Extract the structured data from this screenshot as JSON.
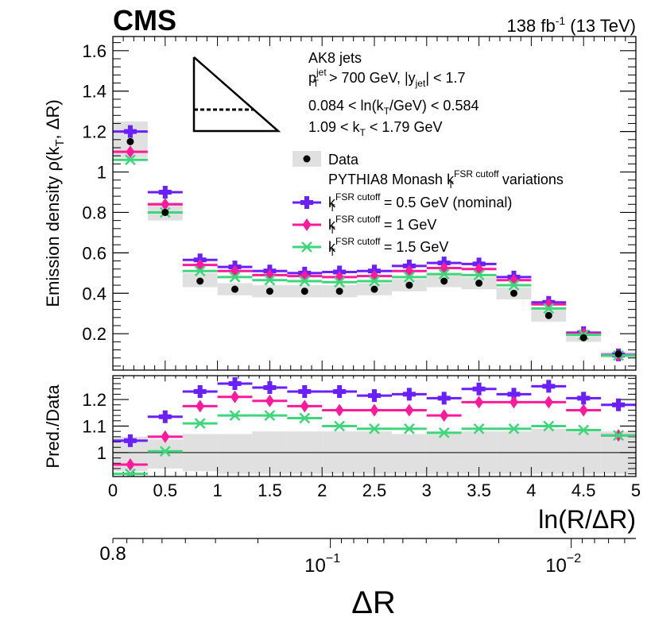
{
  "header": {
    "experiment": "CMS",
    "lumi": "138 fb",
    "lumi_exp": "-1",
    "energy": " (13 TeV)"
  },
  "annotations": {
    "jets": "AK8 jets",
    "pt_prefix": "p",
    "pt_sub": "T",
    "pt_sup": "jet",
    "pt_rest": " > 700 GeV, |y",
    "y_sub": "jet",
    "y_rest": "| < 1.7",
    "ln_cut": "0.084 < ln(k",
    "ln_sub": "T",
    "ln_rest": "/GeV) < 0.584",
    "kt_cut": "1.09 < k",
    "kt_sub": "T",
    "kt_rest": " < 1.79 GeV"
  },
  "legend": {
    "data": "Data",
    "header_pre": "PYTHIA8 Monash k",
    "header_sub": "T",
    "header_sup": "FSR cutoff",
    "header_post": " variations",
    "k": "k",
    "k_sub": "T",
    "k_sup": "FSR cutoff",
    "entry_nominal": " = 0.5 GeV (nominal)",
    "entry_1": " = 1 GeV",
    "entry_15": " = 1.5 GeV"
  },
  "colors": {
    "nominal": "#6a1fff",
    "kt1": "#ff1a9c",
    "kt15": "#3ed67a",
    "band": "#e0e0e0"
  },
  "chart_data": [
    {
      "type": "line",
      "panel": "main",
      "ylabel_pre": "Emission density ρ(k",
      "ylabel_sub": "T",
      "ylabel_post": ", ΔR)",
      "xlim": [
        0,
        5
      ],
      "ylim": [
        0.02,
        1.67
      ],
      "yticks": [
        0.2,
        0.4,
        0.6,
        0.8,
        1,
        1.2,
        1.4,
        1.6
      ],
      "ytick_labels": [
        "0.2",
        "0.4",
        "0.6",
        "0.8",
        "1",
        "1.2",
        "1.4",
        "1.6"
      ],
      "bin_edges": [
        0,
        0.333,
        0.667,
        1.0,
        1.333,
        1.667,
        2.0,
        2.333,
        2.667,
        3.0,
        3.333,
        3.667,
        4.0,
        4.333,
        4.667,
        5.0
      ],
      "data": [
        1.15,
        0.8,
        0.46,
        0.42,
        0.41,
        0.41,
        0.41,
        0.42,
        0.44,
        0.46,
        0.45,
        0.4,
        0.29,
        0.18,
        0.1
      ],
      "data_band": [
        [
          1.07,
          1.25
        ],
        [
          0.76,
          0.85
        ],
        [
          0.43,
          0.5
        ],
        [
          0.39,
          0.45
        ],
        [
          0.38,
          0.44
        ],
        [
          0.38,
          0.44
        ],
        [
          0.38,
          0.44
        ],
        [
          0.39,
          0.45
        ],
        [
          0.41,
          0.47
        ],
        [
          0.43,
          0.49
        ],
        [
          0.42,
          0.48
        ],
        [
          0.37,
          0.43
        ],
        [
          0.26,
          0.32
        ],
        [
          0.16,
          0.2
        ],
        [
          0.08,
          0.11
        ]
      ],
      "series": [
        {
          "name": "kT FSR cutoff = 0.5 GeV (nominal)",
          "values": [
            1.2,
            0.9,
            0.565,
            0.53,
            0.51,
            0.5,
            0.505,
            0.51,
            0.535,
            0.55,
            0.545,
            0.48,
            0.355,
            0.205,
            0.095
          ]
        },
        {
          "name": "kT FSR cutoff = 1 GeV",
          "values": [
            1.1,
            0.84,
            0.54,
            0.51,
            0.49,
            0.485,
            0.48,
            0.485,
            0.51,
            0.525,
            0.52,
            0.465,
            0.345,
            0.2,
            0.093
          ]
        },
        {
          "name": "kT FSR cutoff = 1.5 GeV",
          "values": [
            1.06,
            0.8,
            0.51,
            0.48,
            0.465,
            0.46,
            0.455,
            0.46,
            0.48,
            0.495,
            0.49,
            0.44,
            0.325,
            0.195,
            0.092
          ]
        }
      ]
    },
    {
      "type": "line",
      "panel": "ratio",
      "ylabel": "Pred./Data",
      "xlabel_pre": "ln(R/",
      "xlabel_delta": "Δ",
      "xlabel_post": "R)",
      "xlim": [
        0,
        5
      ],
      "ylim": [
        0.91,
        1.29
      ],
      "yticks": [
        1,
        1.1,
        1.2
      ],
      "ytick_labels": [
        "1",
        "1.1",
        "1.2"
      ],
      "xticks": [
        0,
        0.5,
        1,
        1.5,
        2,
        2.5,
        3,
        3.5,
        4,
        4.5,
        5
      ],
      "xtick_labels": [
        "0",
        "0.5",
        "1",
        "1.5",
        "2",
        "2.5",
        "3",
        "3.5",
        "4",
        "4.5",
        "5"
      ],
      "band": [
        [
          0.93,
          1.06
        ],
        [
          0.94,
          1.05
        ],
        [
          0.93,
          1.07
        ],
        [
          0.92,
          1.07
        ],
        [
          0.92,
          1.08
        ],
        [
          0.92,
          1.08
        ],
        [
          0.92,
          1.08
        ],
        [
          0.92,
          1.08
        ],
        [
          0.92,
          1.07
        ],
        [
          0.92,
          1.07
        ],
        [
          0.92,
          1.08
        ],
        [
          0.92,
          1.08
        ],
        [
          0.92,
          1.09
        ],
        [
          0.92,
          1.08
        ],
        [
          0.92,
          1.08
        ]
      ],
      "series": [
        {
          "name": "kT FSR cutoff = 0.5 GeV (nominal)",
          "values": [
            1.045,
            1.135,
            1.23,
            1.26,
            1.245,
            1.23,
            1.23,
            1.215,
            1.22,
            1.205,
            1.24,
            1.22,
            1.25,
            1.205,
            1.18
          ]
        },
        {
          "name": "kT FSR cutoff = 1 GeV",
          "values": [
            0.955,
            1.06,
            1.175,
            1.21,
            1.195,
            1.175,
            1.16,
            1.16,
            1.16,
            1.14,
            1.19,
            1.19,
            1.19,
            1.16,
            1.065
          ]
        },
        {
          "name": "kT FSR cutoff = 1.5 GeV",
          "values": [
            0.92,
            1.005,
            1.11,
            1.14,
            1.14,
            1.13,
            1.1,
            1.09,
            1.09,
            1.075,
            1.09,
            1.09,
            1.1,
            1.085,
            1.065
          ]
        }
      ]
    },
    {
      "type": "line",
      "panel": "secondary-axis",
      "xlabel": "ΔR",
      "scale": "log",
      "range": [
        0.8,
        0.00539
      ],
      "ticks": [
        0.1,
        0.01
      ],
      "tick_base": "10",
      "tick_exps": [
        "−1",
        "−2"
      ],
      "start_label": "0.8"
    }
  ]
}
